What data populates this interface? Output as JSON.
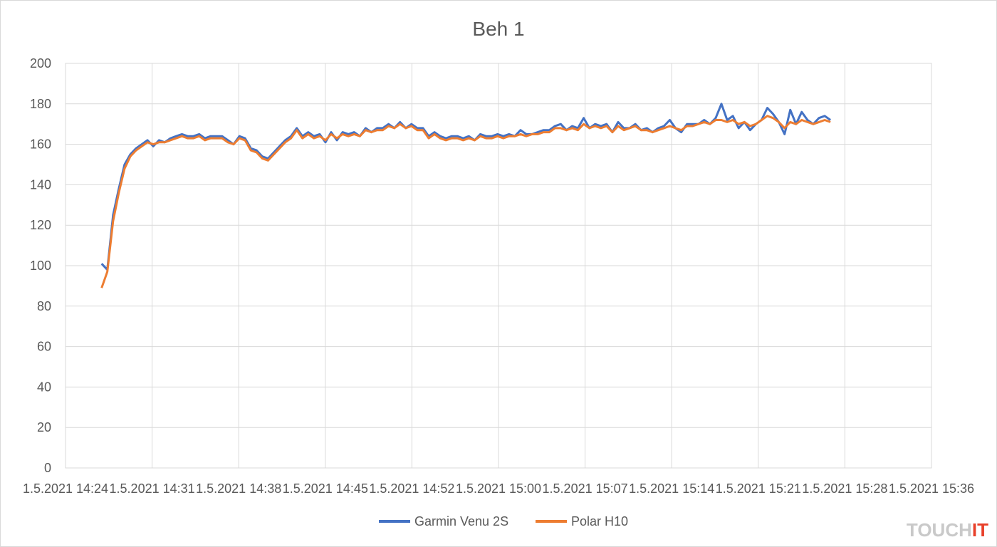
{
  "chart_data": {
    "type": "line",
    "title": "Beh 1",
    "xlabel": "",
    "ylabel": "",
    "ylim": [
      0,
      200
    ],
    "y_ticks": [
      0,
      20,
      40,
      60,
      80,
      100,
      120,
      140,
      160,
      180,
      200
    ],
    "xlim": [
      "1.5.2021 14:24",
      "1.5.2021 15:36"
    ],
    "x_ticks": [
      "1.5.2021 14:24",
      "1.5.2021 14:31",
      "1.5.2021 14:38",
      "1.5.2021 14:45",
      "1.5.2021 14:52",
      "1.5.2021 15:00",
      "1.5.2021 15:07",
      "1.5.2021 15:14",
      "1.5.2021 15:21",
      "1.5.2021 15:28",
      "1.5.2021 15:36"
    ],
    "grid": true,
    "legend_position": "bottom",
    "series": [
      {
        "name": "Garmin Venu 2S",
        "color": "#4472c4",
        "points": [
          [
            "1.5.2021 14:27",
            101
          ],
          [
            "1.5.2021 14:27",
            98
          ],
          [
            "1.5.2021 14:27",
            125
          ],
          [
            "1.5.2021 14:27",
            138
          ],
          [
            "1.5.2021 14:28",
            150
          ],
          [
            "1.5.2021 14:28",
            155
          ],
          [
            "1.5.2021 14:28",
            158
          ],
          [
            "1.5.2021 14:29",
            160
          ],
          [
            "1.5.2021 14:29",
            162
          ],
          [
            "1.5.2021 14:29",
            159
          ],
          [
            "1.5.2021 14:30",
            162
          ],
          [
            "1.5.2021 14:30",
            161
          ],
          [
            "1.5.2021 14:31",
            163
          ],
          [
            "1.5.2021 14:31",
            164
          ],
          [
            "1.5.2021 14:32",
            165
          ],
          [
            "1.5.2021 14:32",
            164
          ],
          [
            "1.5.2021 14:33",
            164
          ],
          [
            "1.5.2021 14:33",
            165
          ],
          [
            "1.5.2021 14:34",
            163
          ],
          [
            "1.5.2021 14:34",
            164
          ],
          [
            "1.5.2021 14:35",
            164
          ],
          [
            "1.5.2021 14:35",
            164
          ],
          [
            "1.5.2021 14:36",
            162
          ],
          [
            "1.5.2021 14:36",
            160
          ],
          [
            "1.5.2021 14:37",
            164
          ],
          [
            "1.5.2021 14:37",
            163
          ],
          [
            "1.5.2021 14:38",
            158
          ],
          [
            "1.5.2021 14:38",
            157
          ],
          [
            "1.5.2021 14:39",
            154
          ],
          [
            "1.5.2021 14:39",
            153
          ],
          [
            "1.5.2021 14:40",
            156
          ],
          [
            "1.5.2021 14:40",
            159
          ],
          [
            "1.5.2021 14:41",
            162
          ],
          [
            "1.5.2021 14:41",
            164
          ],
          [
            "1.5.2021 14:42",
            168
          ],
          [
            "1.5.2021 14:42",
            164
          ],
          [
            "1.5.2021 14:43",
            166
          ],
          [
            "1.5.2021 14:43",
            164
          ],
          [
            "1.5.2021 14:44",
            165
          ],
          [
            "1.5.2021 14:44",
            161
          ],
          [
            "1.5.2021 14:45",
            166
          ],
          [
            "1.5.2021 14:45",
            162
          ],
          [
            "1.5.2021 14:46",
            166
          ],
          [
            "1.5.2021 14:46",
            165
          ],
          [
            "1.5.2021 14:47",
            166
          ],
          [
            "1.5.2021 14:47",
            164
          ],
          [
            "1.5.2021 14:48",
            168
          ],
          [
            "1.5.2021 14:48",
            166
          ],
          [
            "1.5.2021 14:49",
            168
          ],
          [
            "1.5.2021 14:49",
            168
          ],
          [
            "1.5.2021 14:50",
            170
          ],
          [
            "1.5.2021 14:50",
            168
          ],
          [
            "1.5.2021 14:51",
            171
          ],
          [
            "1.5.2021 14:51",
            168
          ],
          [
            "1.5.2021 14:52",
            170
          ],
          [
            "1.5.2021 14:52",
            168
          ],
          [
            "1.5.2021 14:53",
            168
          ],
          [
            "1.5.2021 14:53",
            164
          ],
          [
            "1.5.2021 14:54",
            166
          ],
          [
            "1.5.2021 14:54",
            164
          ],
          [
            "1.5.2021 14:55",
            163
          ],
          [
            "1.5.2021 14:55",
            164
          ],
          [
            "1.5.2021 14:56",
            164
          ],
          [
            "1.5.2021 14:56",
            163
          ],
          [
            "1.5.2021 14:57",
            164
          ],
          [
            "1.5.2021 14:57",
            162
          ],
          [
            "1.5.2021 14:58",
            165
          ],
          [
            "1.5.2021 14:58",
            164
          ],
          [
            "1.5.2021 14:59",
            164
          ],
          [
            "1.5.2021 14:59",
            165
          ],
          [
            "1.5.2021 15:00",
            164
          ],
          [
            "1.5.2021 15:00",
            165
          ],
          [
            "1.5.2021 15:01",
            164
          ],
          [
            "1.5.2021 15:01",
            167
          ],
          [
            "1.5.2021 15:02",
            165
          ],
          [
            "1.5.2021 15:02",
            165
          ],
          [
            "1.5.2021 15:03",
            166
          ],
          [
            "1.5.2021 15:03",
            167
          ],
          [
            "1.5.2021 15:04",
            167
          ],
          [
            "1.5.2021 15:04",
            169
          ],
          [
            "1.5.2021 15:05",
            170
          ],
          [
            "1.5.2021 15:05",
            167
          ],
          [
            "1.5.2021 15:06",
            169
          ],
          [
            "1.5.2021 15:06",
            168
          ],
          [
            "1.5.2021 15:07",
            173
          ],
          [
            "1.5.2021 15:07",
            168
          ],
          [
            "1.5.2021 15:08",
            170
          ],
          [
            "1.5.2021 15:08",
            169
          ],
          [
            "1.5.2021 15:09",
            170
          ],
          [
            "1.5.2021 15:09",
            166
          ],
          [
            "1.5.2021 15:10",
            171
          ],
          [
            "1.5.2021 15:10",
            168
          ],
          [
            "1.5.2021 15:11",
            168
          ],
          [
            "1.5.2021 15:11",
            170
          ],
          [
            "1.5.2021 15:12",
            167
          ],
          [
            "1.5.2021 15:12",
            168
          ],
          [
            "1.5.2021 15:13",
            166
          ],
          [
            "1.5.2021 15:13",
            168
          ],
          [
            "1.5.2021 15:14",
            169
          ],
          [
            "1.5.2021 15:14",
            172
          ],
          [
            "1.5.2021 15:15",
            168
          ],
          [
            "1.5.2021 15:15",
            166
          ],
          [
            "1.5.2021 15:16",
            170
          ],
          [
            "1.5.2021 15:16",
            170
          ],
          [
            "1.5.2021 15:17",
            170
          ],
          [
            "1.5.2021 15:17",
            172
          ],
          [
            "1.5.2021 15:18",
            170
          ],
          [
            "1.5.2021 15:18",
            173
          ],
          [
            "1.5.2021 15:19",
            180
          ],
          [
            "1.5.2021 15:19",
            172
          ],
          [
            "1.5.2021 15:19",
            174
          ],
          [
            "1.5.2021 15:20",
            168
          ],
          [
            "1.5.2021 15:20",
            171
          ],
          [
            "1.5.2021 15:20",
            167
          ],
          [
            "1.5.2021 15:21",
            170
          ],
          [
            "1.5.2021 15:21",
            172
          ],
          [
            "1.5.2021 15:22",
            178
          ],
          [
            "1.5.2021 15:22",
            175
          ],
          [
            "1.5.2021 15:23",
            171
          ],
          [
            "1.5.2021 15:23",
            165
          ],
          [
            "1.5.2021 15:24",
            177
          ],
          [
            "1.5.2021 15:24",
            170
          ],
          [
            "1.5.2021 15:25",
            176
          ],
          [
            "1.5.2021 15:25",
            172
          ],
          [
            "1.5.2021 15:26",
            170
          ],
          [
            "1.5.2021 15:26",
            173
          ],
          [
            "1.5.2021 15:27",
            174
          ],
          [
            "1.5.2021 15:27",
            172
          ]
        ]
      },
      {
        "name": "Polar H10",
        "color": "#ed7d31",
        "points": [
          [
            "1.5.2021 14:27",
            89
          ],
          [
            "1.5.2021 14:27",
            97
          ],
          [
            "1.5.2021 14:27",
            122
          ],
          [
            "1.5.2021 14:27",
            136
          ],
          [
            "1.5.2021 14:28",
            148
          ],
          [
            "1.5.2021 14:28",
            154
          ],
          [
            "1.5.2021 14:28",
            157
          ],
          [
            "1.5.2021 14:29",
            159
          ],
          [
            "1.5.2021 14:29",
            161
          ],
          [
            "1.5.2021 14:29",
            160
          ],
          [
            "1.5.2021 14:30",
            161
          ],
          [
            "1.5.2021 14:30",
            161
          ],
          [
            "1.5.2021 14:31",
            162
          ],
          [
            "1.5.2021 14:31",
            163
          ],
          [
            "1.5.2021 14:32",
            164
          ],
          [
            "1.5.2021 14:32",
            163
          ],
          [
            "1.5.2021 14:33",
            163
          ],
          [
            "1.5.2021 14:33",
            164
          ],
          [
            "1.5.2021 14:34",
            162
          ],
          [
            "1.5.2021 14:34",
            163
          ],
          [
            "1.5.2021 14:35",
            163
          ],
          [
            "1.5.2021 14:35",
            163
          ],
          [
            "1.5.2021 14:36",
            161
          ],
          [
            "1.5.2021 14:36",
            160
          ],
          [
            "1.5.2021 14:37",
            163
          ],
          [
            "1.5.2021 14:37",
            162
          ],
          [
            "1.5.2021 14:38",
            157
          ],
          [
            "1.5.2021 14:38",
            156
          ],
          [
            "1.5.2021 14:39",
            153
          ],
          [
            "1.5.2021 14:39",
            152
          ],
          [
            "1.5.2021 14:40",
            155
          ],
          [
            "1.5.2021 14:40",
            158
          ],
          [
            "1.5.2021 14:41",
            161
          ],
          [
            "1.5.2021 14:41",
            163
          ],
          [
            "1.5.2021 14:42",
            167
          ],
          [
            "1.5.2021 14:42",
            163
          ],
          [
            "1.5.2021 14:43",
            165
          ],
          [
            "1.5.2021 14:43",
            163
          ],
          [
            "1.5.2021 14:44",
            164
          ],
          [
            "1.5.2021 14:44",
            162
          ],
          [
            "1.5.2021 14:45",
            165
          ],
          [
            "1.5.2021 14:45",
            163
          ],
          [
            "1.5.2021 14:46",
            165
          ],
          [
            "1.5.2021 14:46",
            164
          ],
          [
            "1.5.2021 14:47",
            165
          ],
          [
            "1.5.2021 14:47",
            164
          ],
          [
            "1.5.2021 14:48",
            167
          ],
          [
            "1.5.2021 14:48",
            166
          ],
          [
            "1.5.2021 14:49",
            167
          ],
          [
            "1.5.2021 14:49",
            167
          ],
          [
            "1.5.2021 14:50",
            169
          ],
          [
            "1.5.2021 14:50",
            168
          ],
          [
            "1.5.2021 14:51",
            170
          ],
          [
            "1.5.2021 14:51",
            168
          ],
          [
            "1.5.2021 14:52",
            169
          ],
          [
            "1.5.2021 14:52",
            167
          ],
          [
            "1.5.2021 14:53",
            167
          ],
          [
            "1.5.2021 14:53",
            163
          ],
          [
            "1.5.2021 14:54",
            165
          ],
          [
            "1.5.2021 14:54",
            163
          ],
          [
            "1.5.2021 14:55",
            162
          ],
          [
            "1.5.2021 14:55",
            163
          ],
          [
            "1.5.2021 14:56",
            163
          ],
          [
            "1.5.2021 14:56",
            162
          ],
          [
            "1.5.2021 14:57",
            163
          ],
          [
            "1.5.2021 14:57",
            162
          ],
          [
            "1.5.2021 14:58",
            164
          ],
          [
            "1.5.2021 14:58",
            163
          ],
          [
            "1.5.2021 14:59",
            163
          ],
          [
            "1.5.2021 14:59",
            164
          ],
          [
            "1.5.2021 15:00",
            163
          ],
          [
            "1.5.2021 15:00",
            164
          ],
          [
            "1.5.2021 15:01",
            164
          ],
          [
            "1.5.2021 15:01",
            165
          ],
          [
            "1.5.2021 15:02",
            164
          ],
          [
            "1.5.2021 15:02",
            165
          ],
          [
            "1.5.2021 15:03",
            165
          ],
          [
            "1.5.2021 15:03",
            166
          ],
          [
            "1.5.2021 15:04",
            166
          ],
          [
            "1.5.2021 15:04",
            168
          ],
          [
            "1.5.2021 15:05",
            168
          ],
          [
            "1.5.2021 15:05",
            167
          ],
          [
            "1.5.2021 15:06",
            168
          ],
          [
            "1.5.2021 15:06",
            167
          ],
          [
            "1.5.2021 15:07",
            170
          ],
          [
            "1.5.2021 15:07",
            168
          ],
          [
            "1.5.2021 15:08",
            169
          ],
          [
            "1.5.2021 15:08",
            168
          ],
          [
            "1.5.2021 15:09",
            169
          ],
          [
            "1.5.2021 15:09",
            166
          ],
          [
            "1.5.2021 15:10",
            169
          ],
          [
            "1.5.2021 15:10",
            167
          ],
          [
            "1.5.2021 15:11",
            168
          ],
          [
            "1.5.2021 15:11",
            169
          ],
          [
            "1.5.2021 15:12",
            167
          ],
          [
            "1.5.2021 15:12",
            167
          ],
          [
            "1.5.2021 15:13",
            166
          ],
          [
            "1.5.2021 15:13",
            167
          ],
          [
            "1.5.2021 15:14",
            168
          ],
          [
            "1.5.2021 15:14",
            169
          ],
          [
            "1.5.2021 15:15",
            168
          ],
          [
            "1.5.2021 15:15",
            167
          ],
          [
            "1.5.2021 15:16",
            169
          ],
          [
            "1.5.2021 15:16",
            169
          ],
          [
            "1.5.2021 15:17",
            170
          ],
          [
            "1.5.2021 15:17",
            171
          ],
          [
            "1.5.2021 15:18",
            170
          ],
          [
            "1.5.2021 15:18",
            172
          ],
          [
            "1.5.2021 15:19",
            172
          ],
          [
            "1.5.2021 15:19",
            171
          ],
          [
            "1.5.2021 15:19",
            172
          ],
          [
            "1.5.2021 15:20",
            170
          ],
          [
            "1.5.2021 15:20",
            171
          ],
          [
            "1.5.2021 15:20",
            169
          ],
          [
            "1.5.2021 15:21",
            170
          ],
          [
            "1.5.2021 15:21",
            172
          ],
          [
            "1.5.2021 15:22",
            174
          ],
          [
            "1.5.2021 15:22",
            173
          ],
          [
            "1.5.2021 15:23",
            171
          ],
          [
            "1.5.2021 15:23",
            168
          ],
          [
            "1.5.2021 15:24",
            171
          ],
          [
            "1.5.2021 15:24",
            170
          ],
          [
            "1.5.2021 15:25",
            172
          ],
          [
            "1.5.2021 15:25",
            171
          ],
          [
            "1.5.2021 15:26",
            170
          ],
          [
            "1.5.2021 15:26",
            171
          ],
          [
            "1.5.2021 15:27",
            172
          ],
          [
            "1.5.2021 15:27",
            171
          ]
        ]
      }
    ]
  },
  "watermark": {
    "text_main": "TOUCH",
    "text_accent": "IT"
  }
}
